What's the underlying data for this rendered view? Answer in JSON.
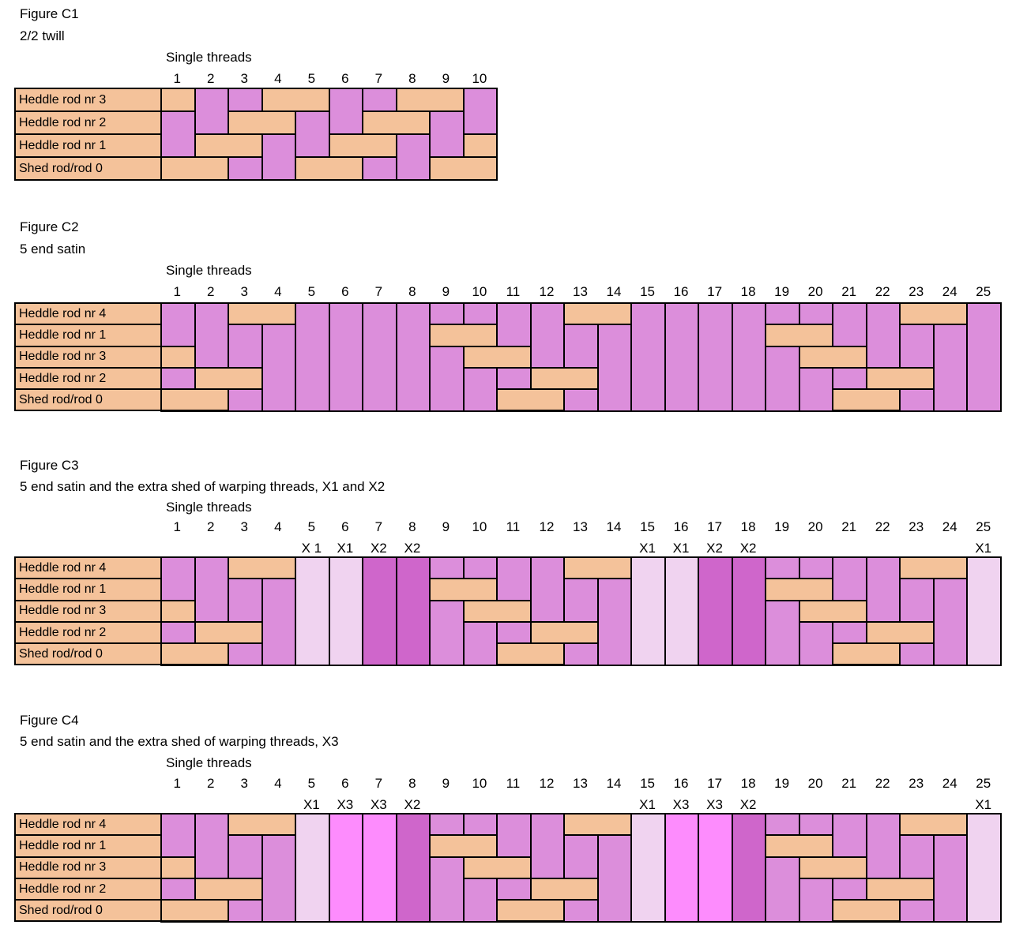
{
  "colors": {
    "background": "#FFFFFF",
    "border": "#000000",
    "text": "#000000",
    "purple": "#DC8EDB",
    "orange": "#F4C29A",
    "x1": "#F0D3F0",
    "x2": "#CF66CB",
    "x3": "#FD8CFD"
  },
  "figures": [
    {
      "title": "Figure C1",
      "subtitle": "2/2 twill",
      "threads_heading": "Single threads",
      "thread_numbers": [
        "1",
        "2",
        "3",
        "4",
        "5",
        "6",
        "7",
        "8",
        "9",
        "10"
      ],
      "extra_shed_labels": {},
      "special_columns": {},
      "row_labels": [
        "Heddle rod nr 3",
        "Heddle rod nr 2",
        "Heddle rod nr 1",
        "Shed rod/rod 0"
      ],
      "orange_runs": [
        {
          "row": 0,
          "from": 1,
          "to": 1
        },
        {
          "row": 0,
          "from": 4,
          "to": 5
        },
        {
          "row": 0,
          "from": 8,
          "to": 9
        },
        {
          "row": 1,
          "from": 3,
          "to": 4
        },
        {
          "row": 1,
          "from": 7,
          "to": 8
        },
        {
          "row": 2,
          "from": 2,
          "to": 3
        },
        {
          "row": 2,
          "from": 6,
          "to": 7
        },
        {
          "row": 2,
          "from": 10,
          "to": 10
        },
        {
          "row": 3,
          "from": 1,
          "to": 2
        },
        {
          "row": 3,
          "from": 5,
          "to": 6
        },
        {
          "row": 3,
          "from": 9,
          "to": 10
        }
      ]
    },
    {
      "title": "Figure C2",
      "subtitle": "5 end satin",
      "threads_heading": "Single threads",
      "thread_numbers": [
        "1",
        "2",
        "3",
        "4",
        "5",
        "6",
        "7",
        "8",
        "9",
        "10",
        "11",
        "12",
        "13",
        "14",
        "15",
        "16",
        "17",
        "18",
        "19",
        "20",
        "21",
        "22",
        "23",
        "24",
        "25"
      ],
      "extra_shed_labels": {},
      "special_columns": {},
      "row_labels": [
        "Heddle rod nr 4",
        "Heddle rod nr 1",
        "Heddle rod nr 3",
        "Heddle rod nr 2",
        "Shed rod/rod 0"
      ],
      "orange_runs": [
        {
          "row": 0,
          "from": 3,
          "to": 4
        },
        {
          "row": 0,
          "from": 13,
          "to": 14
        },
        {
          "row": 0,
          "from": 23,
          "to": 24
        },
        {
          "row": 1,
          "from": 9,
          "to": 10
        },
        {
          "row": 1,
          "from": 19,
          "to": 20
        },
        {
          "row": 2,
          "from": 1,
          "to": 1
        },
        {
          "row": 2,
          "from": 10,
          "to": 11
        },
        {
          "row": 2,
          "from": 20,
          "to": 21
        },
        {
          "row": 3,
          "from": 2,
          "to": 3
        },
        {
          "row": 3,
          "from": 12,
          "to": 13
        },
        {
          "row": 3,
          "from": 22,
          "to": 23
        },
        {
          "row": 4,
          "from": 1,
          "to": 2
        },
        {
          "row": 4,
          "from": 11,
          "to": 12
        },
        {
          "row": 4,
          "from": 21,
          "to": 22
        }
      ]
    },
    {
      "title": "Figure C3",
      "subtitle": "5 end satin and the extra shed of warping threads, X1 and X2",
      "threads_heading": "Single threads",
      "thread_numbers": [
        "1",
        "2",
        "3",
        "4",
        "5",
        "6",
        "7",
        "8",
        "9",
        "10",
        "11",
        "12",
        "13",
        "14",
        "15",
        "16",
        "17",
        "18",
        "19",
        "20",
        "21",
        "22",
        "23",
        "24",
        "25"
      ],
      "extra_shed_labels": {
        "5": "X 1",
        "6": "X1",
        "7": "X2",
        "8": "X2",
        "15": "X1",
        "16": "X1",
        "17": "X2",
        "18": "X2",
        "25": "X1"
      },
      "special_columns": {
        "5": "x1",
        "6": "x1",
        "7": "x2",
        "8": "x2",
        "15": "x1",
        "16": "x1",
        "17": "x2",
        "18": "x2",
        "25": "x1"
      },
      "row_labels": [
        "Heddle rod nr 4",
        "Heddle rod nr 1",
        "Heddle rod nr 3",
        "Heddle rod nr 2",
        "Shed rod/rod 0"
      ],
      "orange_runs": [
        {
          "row": 0,
          "from": 3,
          "to": 4
        },
        {
          "row": 0,
          "from": 13,
          "to": 14
        },
        {
          "row": 0,
          "from": 23,
          "to": 24
        },
        {
          "row": 1,
          "from": 9,
          "to": 10
        },
        {
          "row": 1,
          "from": 19,
          "to": 20
        },
        {
          "row": 2,
          "from": 1,
          "to": 1
        },
        {
          "row": 2,
          "from": 10,
          "to": 11
        },
        {
          "row": 2,
          "from": 20,
          "to": 21
        },
        {
          "row": 3,
          "from": 2,
          "to": 3
        },
        {
          "row": 3,
          "from": 12,
          "to": 13
        },
        {
          "row": 3,
          "from": 22,
          "to": 23
        },
        {
          "row": 4,
          "from": 1,
          "to": 2
        },
        {
          "row": 4,
          "from": 11,
          "to": 12
        },
        {
          "row": 4,
          "from": 21,
          "to": 22
        }
      ]
    },
    {
      "title": "Figure C4",
      "subtitle": "5 end satin and the extra shed of warping threads, X3",
      "threads_heading": "Single threads",
      "thread_numbers": [
        "1",
        "2",
        "3",
        "4",
        "5",
        "6",
        "7",
        "8",
        "9",
        "10",
        "11",
        "12",
        "13",
        "14",
        "15",
        "16",
        "17",
        "18",
        "19",
        "20",
        "21",
        "22",
        "23",
        "24",
        "25"
      ],
      "extra_shed_labels": {
        "5": "X1",
        "6": "X3",
        "7": "X3",
        "8": "X2",
        "15": "X1",
        "16": "X3",
        "17": "X3",
        "18": "X2",
        "25": "X1"
      },
      "special_columns": {
        "5": "x1",
        "6": "x3",
        "7": "x3",
        "8": "x2",
        "15": "x1",
        "16": "x3",
        "17": "x3",
        "18": "x2",
        "25": "x1"
      },
      "row_labels": [
        "Heddle rod nr 4",
        "Heddle rod nr 1",
        "Heddle rod nr 3",
        "Heddle rod nr 2",
        "Shed rod/rod 0"
      ],
      "orange_runs": [
        {
          "row": 0,
          "from": 3,
          "to": 4
        },
        {
          "row": 0,
          "from": 13,
          "to": 14
        },
        {
          "row": 0,
          "from": 23,
          "to": 24
        },
        {
          "row": 1,
          "from": 9,
          "to": 10
        },
        {
          "row": 1,
          "from": 19,
          "to": 20
        },
        {
          "row": 2,
          "from": 1,
          "to": 1
        },
        {
          "row": 2,
          "from": 10,
          "to": 11
        },
        {
          "row": 2,
          "from": 20,
          "to": 21
        },
        {
          "row": 3,
          "from": 2,
          "to": 3
        },
        {
          "row": 3,
          "from": 12,
          "to": 13
        },
        {
          "row": 3,
          "from": 22,
          "to": 23
        },
        {
          "row": 4,
          "from": 1,
          "to": 2
        },
        {
          "row": 4,
          "from": 11,
          "to": 12
        },
        {
          "row": 4,
          "from": 21,
          "to": 22
        }
      ]
    }
  ]
}
